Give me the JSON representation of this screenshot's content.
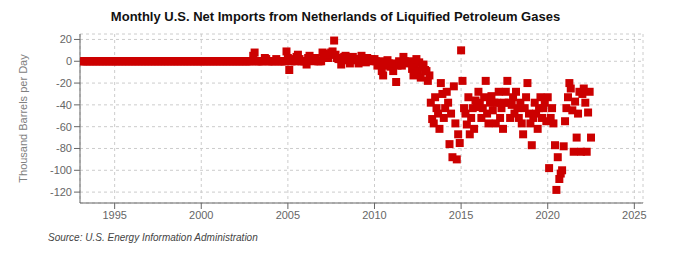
{
  "chart_data": {
    "type": "scatter",
    "title": "Monthly U.S. Net Imports from Netherlands of Liquified Petroleum Gases",
    "ylabel": "Thousand Barrels per Day",
    "annotations": [
      "Source: U.S. Energy Information Administration"
    ],
    "color": "#cc0000",
    "marker": "square",
    "grid": true,
    "xlim": [
      1993.0,
      2025.5
    ],
    "ylim": [
      -130,
      25
    ],
    "xticks": [
      1995,
      2000,
      2005,
      2010,
      2015,
      2020,
      2025
    ],
    "yticks": [
      20,
      0,
      -20,
      -40,
      -60,
      -80,
      -100,
      -120
    ],
    "x": [
      1993.08,
      1993.17,
      1993.25,
      1993.33,
      1993.42,
      1993.5,
      1993.58,
      1993.67,
      1993.75,
      1993.83,
      1993.92,
      1994.0,
      1994.08,
      1994.17,
      1994.25,
      1994.33,
      1994.42,
      1994.5,
      1994.58,
      1994.67,
      1994.75,
      1994.83,
      1994.92,
      1995.0,
      1995.08,
      1995.17,
      1995.25,
      1995.33,
      1995.42,
      1995.5,
      1995.58,
      1995.67,
      1995.75,
      1995.83,
      1995.92,
      1996.0,
      1996.08,
      1996.17,
      1996.25,
      1996.33,
      1996.42,
      1996.5,
      1996.58,
      1996.67,
      1996.75,
      1996.83,
      1996.92,
      1997.0,
      1997.08,
      1997.17,
      1997.25,
      1997.33,
      1997.42,
      1997.5,
      1997.58,
      1997.67,
      1997.75,
      1997.83,
      1997.92,
      1998.0,
      1998.08,
      1998.17,
      1998.25,
      1998.33,
      1998.42,
      1998.5,
      1998.58,
      1998.67,
      1998.75,
      1998.83,
      1998.92,
      1999.0,
      1999.08,
      1999.17,
      1999.25,
      1999.33,
      1999.42,
      1999.5,
      1999.58,
      1999.67,
      1999.75,
      1999.83,
      1999.92,
      2000.0,
      2000.08,
      2000.17,
      2000.25,
      2000.33,
      2000.42,
      2000.5,
      2000.58,
      2000.67,
      2000.75,
      2000.83,
      2000.92,
      2001.0,
      2001.08,
      2001.17,
      2001.25,
      2001.33,
      2001.42,
      2001.5,
      2001.58,
      2001.67,
      2001.75,
      2001.83,
      2001.92,
      2002.0,
      2002.08,
      2002.17,
      2002.25,
      2002.33,
      2002.42,
      2002.5,
      2002.58,
      2002.67,
      2002.75,
      2002.83,
      2002.92,
      2003.0,
      2003.08,
      2003.17,
      2003.25,
      2003.33,
      2003.42,
      2003.5,
      2003.58,
      2003.67,
      2003.75,
      2003.83,
      2003.92,
      2004.0,
      2004.08,
      2004.17,
      2004.25,
      2004.33,
      2004.42,
      2004.5,
      2004.58,
      2004.67,
      2004.75,
      2004.83,
      2004.92,
      2005.0,
      2005.08,
      2005.17,
      2005.25,
      2005.33,
      2005.42,
      2005.5,
      2005.58,
      2005.67,
      2005.75,
      2005.83,
      2005.92,
      2006.0,
      2006.08,
      2006.17,
      2006.25,
      2006.33,
      2006.42,
      2006.5,
      2006.58,
      2006.67,
      2006.75,
      2006.83,
      2006.92,
      2007.0,
      2007.08,
      2007.17,
      2007.25,
      2007.33,
      2007.42,
      2007.5,
      2007.58,
      2007.67,
      2007.75,
      2007.83,
      2007.92,
      2008.0,
      2008.08,
      2008.17,
      2008.25,
      2008.33,
      2008.42,
      2008.5,
      2008.58,
      2008.67,
      2008.75,
      2008.83,
      2008.92,
      2009.0,
      2009.08,
      2009.17,
      2009.25,
      2009.33,
      2009.42,
      2009.5,
      2009.58,
      2009.67,
      2009.75,
      2009.83,
      2009.92,
      2010.0,
      2010.08,
      2010.17,
      2010.25,
      2010.33,
      2010.42,
      2010.5,
      2010.58,
      2010.67,
      2010.75,
      2010.83,
      2010.92,
      2011.0,
      2011.08,
      2011.17,
      2011.25,
      2011.33,
      2011.42,
      2011.5,
      2011.58,
      2011.67,
      2011.75,
      2011.83,
      2011.92,
      2012.0,
      2012.08,
      2012.17,
      2012.25,
      2012.33,
      2012.42,
      2012.5,
      2012.58,
      2012.67,
      2012.75,
      2012.83,
      2012.92,
      2013.0,
      2013.08,
      2013.17,
      2013.25,
      2013.33,
      2013.42,
      2013.5,
      2013.58,
      2013.67,
      2013.75,
      2013.83,
      2013.92,
      2014.0,
      2014.08,
      2014.17,
      2014.25,
      2014.33,
      2014.42,
      2014.5,
      2014.58,
      2014.67,
      2014.75,
      2014.83,
      2014.92,
      2015.0,
      2015.08,
      2015.17,
      2015.25,
      2015.33,
      2015.42,
      2015.5,
      2015.58,
      2015.67,
      2015.75,
      2015.83,
      2015.92,
      2016.0,
      2016.08,
      2016.17,
      2016.25,
      2016.33,
      2016.42,
      2016.5,
      2016.58,
      2016.67,
      2016.75,
      2016.83,
      2016.92,
      2017.0,
      2017.08,
      2017.17,
      2017.25,
      2017.33,
      2017.42,
      2017.5,
      2017.58,
      2017.67,
      2017.75,
      2017.83,
      2017.92,
      2018.0,
      2018.08,
      2018.17,
      2018.25,
      2018.33,
      2018.42,
      2018.5,
      2018.58,
      2018.67,
      2018.75,
      2018.83,
      2018.92,
      2019.0,
      2019.08,
      2019.17,
      2019.25,
      2019.33,
      2019.42,
      2019.5,
      2019.58,
      2019.67,
      2019.75,
      2019.83,
      2019.92,
      2020.0,
      2020.08,
      2020.17,
      2020.25,
      2020.33,
      2020.42,
      2020.5,
      2020.58,
      2020.67,
      2020.75,
      2020.83,
      2020.92,
      2021.0,
      2021.08,
      2021.17,
      2021.25,
      2021.33,
      2021.42,
      2021.5,
      2021.58,
      2021.67,
      2021.75,
      2021.83,
      2021.92,
      2022.0,
      2022.08,
      2022.17,
      2022.25,
      2022.33,
      2022.42,
      2022.5
    ],
    "values": [
      0,
      0,
      0,
      0,
      0,
      0,
      0,
      0,
      0,
      0,
      0,
      0,
      0,
      0,
      0,
      0,
      0,
      0,
      0,
      0,
      0,
      0,
      0,
      0,
      0,
      0,
      0,
      0,
      0,
      0,
      0,
      0,
      0,
      0,
      0,
      0,
      0,
      0,
      0,
      0,
      0,
      0,
      0,
      0,
      0,
      0,
      0,
      0,
      0,
      0,
      0,
      0,
      0,
      0,
      0,
      0,
      0,
      0,
      0,
      0,
      0,
      0,
      0,
      0,
      0,
      0,
      0,
      0,
      0,
      0,
      0,
      0,
      0,
      0,
      0,
      0,
      0,
      0,
      0,
      0,
      0,
      0,
      0,
      0,
      0,
      0,
      0,
      0,
      0,
      0,
      0,
      0,
      0,
      0,
      0,
      0,
      0,
      0,
      0,
      0,
      0,
      0,
      0,
      0,
      0,
      0,
      0,
      0,
      0,
      0,
      0,
      0,
      0,
      0,
      0,
      0,
      0,
      0,
      0,
      5,
      8,
      0,
      0,
      0,
      0,
      0,
      0,
      3,
      2,
      0,
      0,
      0,
      0,
      0,
      0,
      2,
      0,
      0,
      0,
      0,
      0,
      0,
      9,
      3,
      -8,
      0,
      0,
      2,
      0,
      4,
      6,
      2,
      0,
      0,
      0,
      0,
      -3,
      3,
      5,
      3,
      2,
      0,
      3,
      1,
      0,
      0,
      0,
      8,
      7,
      5,
      3,
      3,
      6,
      8,
      9,
      19,
      6,
      3,
      2,
      2,
      -3,
      1,
      4,
      5,
      2,
      1,
      -2,
      1,
      4,
      2,
      1,
      2,
      -2,
      1,
      5,
      2,
      0,
      -1,
      3,
      1,
      0,
      2,
      1,
      2,
      0,
      -4,
      -2,
      0,
      -9,
      -13,
      -4,
      -2,
      1,
      -2,
      -5,
      -4,
      -9,
      -2,
      -19,
      -4,
      0,
      -2,
      -4,
      4,
      0,
      -1,
      -2,
      -1,
      0,
      -7,
      -13,
      -4,
      2,
      -9,
      -1,
      -15,
      -5,
      -3,
      -8,
      -9,
      -18,
      -13,
      -38,
      -53,
      -57,
      -33,
      -43,
      -48,
      -62,
      -20,
      -30,
      -52,
      -43,
      -28,
      -38,
      -76,
      -48,
      -88,
      -23,
      -57,
      -90,
      -67,
      -75,
      10,
      -18,
      -43,
      -48,
      -58,
      -33,
      -67,
      -52,
      -43,
      -62,
      -36,
      -42,
      -28,
      -38,
      -52,
      -43,
      -33,
      -18,
      -48,
      -57,
      -38,
      -32,
      -45,
      -38,
      -57,
      -38,
      -28,
      -52,
      -43,
      -62,
      -38,
      -28,
      -18,
      -38,
      -52,
      -40,
      -33,
      -48,
      -28,
      -43,
      -52,
      -38,
      -57,
      -67,
      -43,
      -33,
      -20,
      -48,
      -57,
      -77,
      -52,
      -38,
      -48,
      -62,
      -43,
      -33,
      -52,
      -43,
      -38,
      -55,
      -33,
      -98,
      -52,
      -43,
      -57,
      -77,
      -118,
      -88,
      -108,
      -103,
      -100,
      -78,
      -55,
      -43,
      -33,
      -20,
      -25,
      -45,
      -83,
      -37,
      -70,
      -48,
      -28,
      -83,
      -30,
      -25,
      -38,
      -83,
      -47,
      -28,
      -70
    ]
  }
}
